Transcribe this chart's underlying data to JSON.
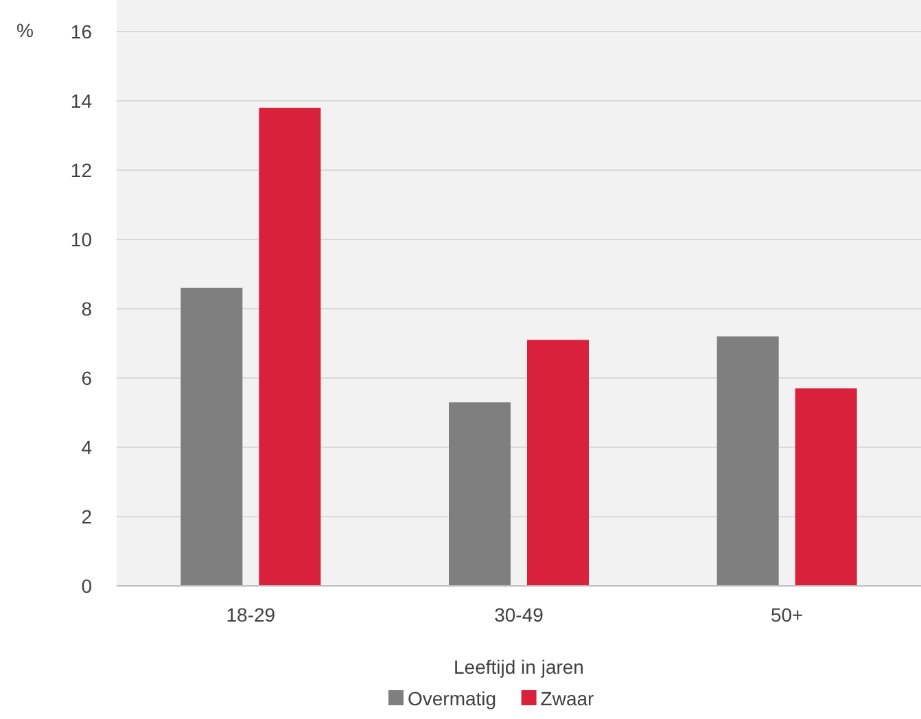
{
  "chart_data": {
    "type": "bar",
    "ylabel": "%",
    "xlabel": "Leeftijd in jaren",
    "categories": [
      "18-29",
      "30-49",
      "50+"
    ],
    "series": [
      {
        "name": "Overmatig",
        "color": "#7f7f7f",
        "values": [
          8.6,
          5.3,
          7.2
        ]
      },
      {
        "name": "Zwaar",
        "color": "#d9213b",
        "values": [
          13.8,
          7.1,
          5.7
        ]
      }
    ],
    "ylim": [
      0,
      16
    ],
    "yticks": [
      0,
      2,
      4,
      6,
      8,
      10,
      12,
      14,
      16
    ],
    "grid": "y",
    "legend": "bottom"
  }
}
